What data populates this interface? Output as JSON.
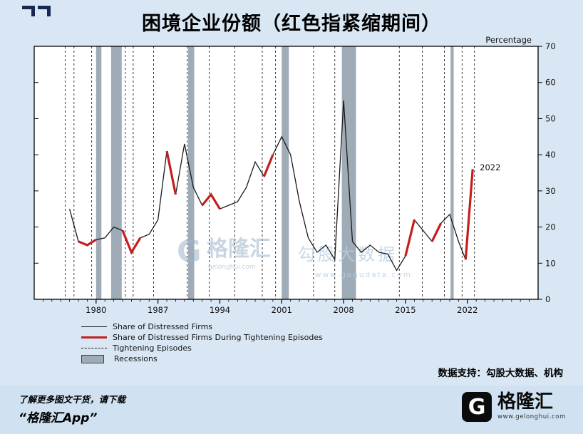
{
  "header": {
    "title": "困境企业份额（红色指紧缩期间）"
  },
  "watermark": {
    "brand_letter": "G",
    "brand": "格隆汇",
    "brand_url": "gelonghui.com",
    "gogu": "勾股大数据",
    "gogu_url": "www.gogudata.com"
  },
  "chart_data": {
    "type": "line",
    "title": "困境企业份额（红色指紧缩期间）",
    "ylabel": "Percentage",
    "ylim": [
      0,
      70
    ],
    "yticks": [
      0,
      10,
      20,
      30,
      40,
      50,
      60,
      70
    ],
    "xlim": [
      1973,
      2030
    ],
    "xticks": [
      1980,
      1987,
      1994,
      2001,
      2008,
      2015,
      2022
    ],
    "line_color": "#1a1a1a",
    "red_color": "#c41e1e",
    "recession_color": "#9fabb6",
    "grid": false,
    "legend_position": "bottom-left",
    "series": {
      "name": "Share of Distressed Firms",
      "x": [
        1977,
        1978,
        1979,
        1980,
        1981,
        1982,
        1983,
        1984,
        1985,
        1986,
        1987,
        1988,
        1989,
        1990,
        1991,
        1992,
        1993,
        1994,
        1995,
        1996,
        1997,
        1998,
        1999,
        2000,
        2001,
        2002,
        2003,
        2004,
        2005,
        2006,
        2007,
        2008,
        2009,
        2010,
        2011,
        2012,
        2013,
        2014,
        2015,
        2016,
        2017,
        2018,
        2019,
        2020,
        2021,
        2021.8,
        2022.6
      ],
      "y": [
        25,
        16,
        15,
        16.5,
        17,
        20,
        19,
        13,
        17,
        18,
        22,
        41,
        29,
        43,
        31,
        26,
        29,
        25,
        26,
        27,
        31,
        38,
        34,
        40,
        45,
        40,
        27,
        17,
        13,
        15,
        11,
        55,
        16,
        13,
        15,
        13,
        12.5,
        8,
        12,
        22,
        19,
        16,
        21,
        23.5,
        16,
        11,
        36
      ]
    },
    "red_segments": [
      {
        "x": [
          1978,
          1979,
          1980
        ],
        "y": [
          16,
          15,
          16.5
        ]
      },
      {
        "x": [
          1983,
          1984,
          1985
        ],
        "y": [
          19,
          13,
          17
        ]
      },
      {
        "x": [
          1988,
          1989
        ],
        "y": [
          41,
          29
        ]
      },
      {
        "x": [
          1992,
          1993,
          1994
        ],
        "y": [
          26,
          29,
          25
        ]
      },
      {
        "x": [
          1999,
          2000
        ],
        "y": [
          34,
          40
        ]
      },
      {
        "x": [
          2015,
          2016
        ],
        "y": [
          12,
          22
        ]
      },
      {
        "x": [
          2018,
          2019
        ],
        "y": [
          16,
          21
        ]
      },
      {
        "x": [
          2021.8,
          2022.6
        ],
        "y": [
          11,
          36
        ]
      }
    ],
    "tightening_lines": [
      1976.5,
      1977.5,
      1979.5,
      1983.3,
      1984.2,
      1986.5,
      1990.3,
      1992.8,
      1995.7,
      1998.8,
      2000.3,
      2004.6,
      2007.0,
      2014.3,
      2016.9,
      2019.4,
      2021.4,
      2022.8
    ],
    "recessions": [
      [
        1980.0,
        1980.6
      ],
      [
        1981.7,
        1982.9
      ],
      [
        1990.4,
        1991.1
      ],
      [
        2001.0,
        2001.8
      ],
      [
        2007.8,
        2009.4
      ],
      [
        2020.1,
        2020.45
      ]
    ],
    "annotation": {
      "text": "2022",
      "year": 2023.4,
      "value": 36.5
    },
    "legend": [
      {
        "type": "line",
        "label": "Share of Distressed Firms"
      },
      {
        "type": "redline",
        "label": "Share of Distressed Firms During Tightening Episodes"
      },
      {
        "type": "dashed",
        "label": "Tightening Episodes"
      },
      {
        "type": "box",
        "label": "Recessions"
      }
    ]
  },
  "footer": {
    "data_support": "数据支持：勾股大数据、机构",
    "promo_line1": "了解更多图文干货，请下载",
    "promo_line2": "“格隆汇App”",
    "logo_letter": "G",
    "logo_name": "格隆汇",
    "logo_url": "www.gelonghui.com"
  }
}
